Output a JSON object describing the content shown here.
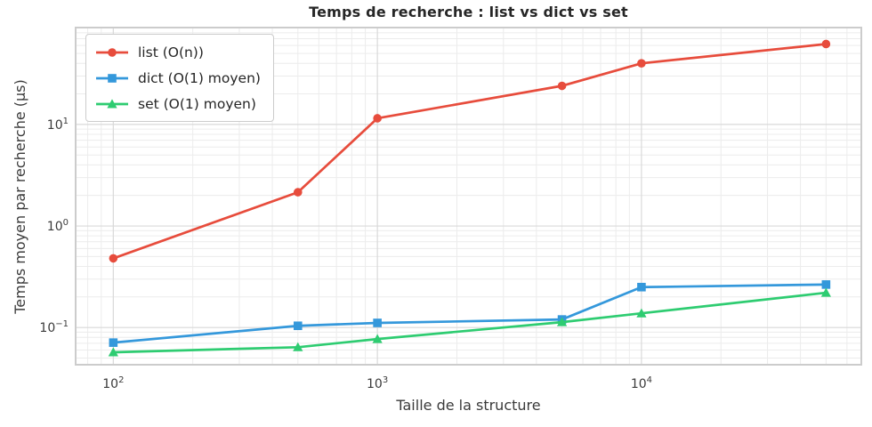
{
  "chart_data": {
    "type": "line",
    "title": "Temps de recherche : list vs dict vs set",
    "xlabel": "Taille de la structure",
    "ylabel": "Temps moyen par recherche (µs)",
    "x_scale": "log",
    "y_scale": "log",
    "xlim": [
      72,
      68000
    ],
    "ylim": [
      0.043,
      90
    ],
    "x_major_tick_exponents": [
      2,
      3,
      4
    ],
    "y_major_tick_exponents": [
      -1,
      0,
      1
    ],
    "grid": "major+minor on, light gray",
    "legend_position": "upper-left",
    "x": [
      100,
      500,
      1000,
      5000,
      10000,
      50000
    ],
    "series": [
      {
        "name": "list (O(n))",
        "color": "#e74c3c",
        "marker": "circle",
        "values": [
          0.48,
          2.15,
          11.5,
          24,
          40,
          62
        ]
      },
      {
        "name": "dict (O(1) moyen)",
        "color": "#3498db",
        "marker": "square",
        "values": [
          0.071,
          0.104,
          0.111,
          0.12,
          0.25,
          0.265
        ]
      },
      {
        "name": "set (O(1) moyen)",
        "color": "#2ecc71",
        "marker": "triangle",
        "values": [
          0.057,
          0.064,
          0.077,
          0.113,
          0.138,
          0.22
        ]
      }
    ],
    "style": {
      "frame_color": "#cccccc",
      "major_grid_color": "#d9d9d9",
      "minor_grid_color": "#ececec",
      "tick_label_color": "#3a3a3a",
      "text_color": "#262626",
      "background": "#ffffff"
    }
  }
}
